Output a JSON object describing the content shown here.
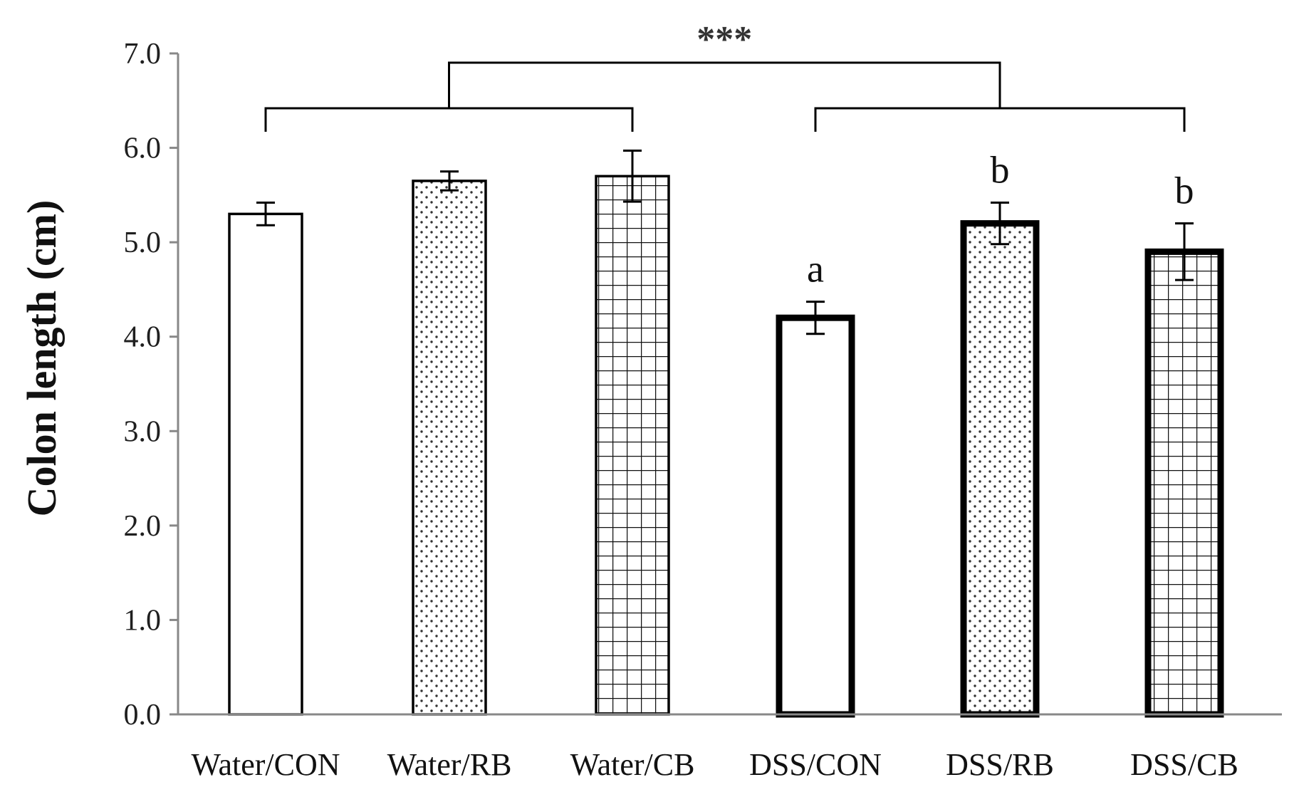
{
  "chart_data": {
    "type": "bar",
    "title": "",
    "xlabel": "",
    "ylabel": "Colon length  (cm)",
    "ylim": [
      0,
      7
    ],
    "yticks": [
      "0.0",
      "1.0",
      "2.0",
      "3.0",
      "4.0",
      "5.0",
      "6.0",
      "7.0"
    ],
    "grid": false,
    "categories": [
      "Water/CON",
      "Water/RB",
      "Water/CB",
      "DSS/CON",
      "DSS/RB",
      "DSS/CB"
    ],
    "values": [
      5.3,
      5.65,
      5.7,
      4.2,
      5.2,
      4.9
    ],
    "errors": [
      0.12,
      0.1,
      0.27,
      0.17,
      0.22,
      0.3
    ],
    "patterns": [
      "none",
      "dots",
      "grid",
      "none",
      "dots",
      "grid"
    ],
    "thick_border": [
      false,
      false,
      false,
      true,
      true,
      true
    ],
    "letters": [
      "",
      "",
      "",
      "a",
      "b",
      "b"
    ],
    "brackets": {
      "groups": [
        {
          "from": "Water/CON",
          "to": "Water/CB"
        },
        {
          "from": "DSS/CON",
          "to": "DSS/CB"
        }
      ],
      "significance": "***"
    }
  }
}
